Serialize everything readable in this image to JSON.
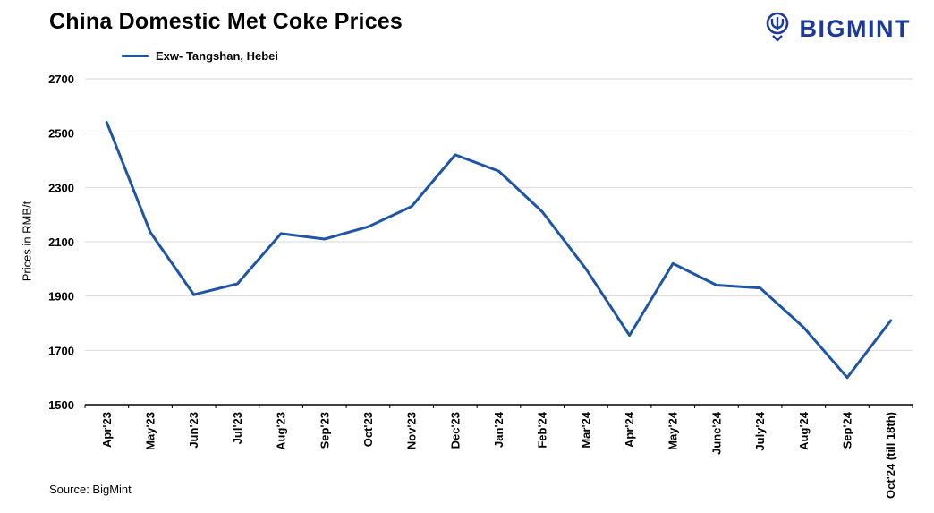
{
  "header": {
    "title": "China Domestic Met Coke Prices"
  },
  "logo": {
    "text": "BIGMINT"
  },
  "legend": {
    "label": "Exw- Tangshan, Hebei"
  },
  "source": {
    "text": "Source: BigMint"
  },
  "colors": {
    "line": "#1f55a5",
    "logo": "#1b3a9c",
    "grid": "#d9d9d9",
    "axis": "#000000"
  },
  "chart_data": {
    "type": "line",
    "title": "China Domestic Met Coke Prices",
    "categories": [
      "Apr'23",
      "May'23",
      "Jun'23",
      "Jul'23",
      "Aug'23",
      "Sep'23",
      "Oct'23",
      "Nov'23",
      "Dec'23",
      "Jan'24",
      "Feb'24",
      "Mar'24",
      "Apr'24",
      "May'24",
      "June'24",
      "July'24",
      "Aug'24",
      "Sep'24",
      "Oct'24 (till 18th)"
    ],
    "series": [
      {
        "name": "Exw- Tangshan, Hebei",
        "values": [
          2540,
          2135,
          1905,
          1945,
          2130,
          2110,
          2155,
          2230,
          2420,
          2360,
          2210,
          2000,
          1755,
          2020,
          1940,
          1930,
          1785,
          1600,
          1810
        ]
      }
    ],
    "xlabel": "",
    "ylabel": "Prices in RMB/t",
    "ylim": [
      1500,
      2700
    ],
    "ytick_step": 200,
    "grid": "horizontal",
    "legend_position": "top-left"
  }
}
